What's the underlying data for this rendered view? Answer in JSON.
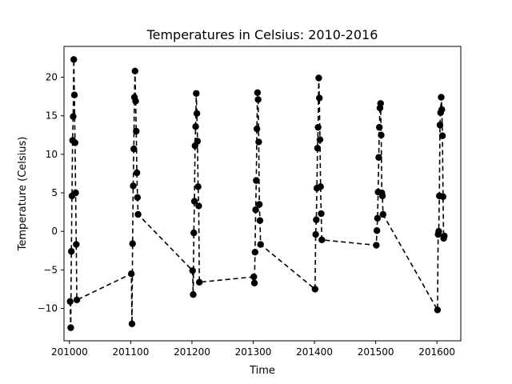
{
  "chart_data": {
    "type": "line",
    "title": "Temperatures in Celsius: 2010-2016",
    "xlabel": "Time",
    "ylabel": "Temperature (Celsius)",
    "xlim": [
      200991,
      201639
    ],
    "ylim": [
      -14.2,
      24.0
    ],
    "xticks": [
      201000,
      201100,
      201200,
      201300,
      201400,
      201500,
      201600
    ],
    "yticks": [
      -10,
      -5,
      0,
      5,
      10,
      15,
      20
    ],
    "grid": false,
    "legend": "none",
    "line_color": "#000000",
    "line_style": "dashed",
    "marker": "circle",
    "series": [
      {
        "x": [
          201001,
          201002,
          201003,
          201004,
          201005,
          201006,
          201007,
          201008,
          201009,
          201010,
          201011,
          201012,
          201101,
          201102,
          201103,
          201104,
          201105,
          201106,
          201107,
          201108,
          201109,
          201110,
          201111,
          201112,
          201201,
          201202,
          201203,
          201204,
          201205,
          201206,
          201207,
          201208,
          201209,
          201210,
          201211,
          201212,
          201301,
          201302,
          201303,
          201304,
          201305,
          201306,
          201307,
          201308,
          201309,
          201310,
          201311,
          201312,
          201401,
          201402,
          201403,
          201404,
          201405,
          201406,
          201407,
          201408,
          201409,
          201410,
          201411,
          201412,
          201501,
          201502,
          201503,
          201504,
          201505,
          201506,
          201507,
          201508,
          201509,
          201510,
          201511,
          201512,
          201601,
          201602,
          201603,
          201604,
          201605,
          201606,
          201607,
          201608,
          201609,
          201610,
          201611,
          201612
        ],
        "y": [
          -9.1,
          -12.5,
          -2.6,
          4.6,
          11.8,
          14.9,
          22.3,
          17.7,
          11.5,
          5.0,
          -1.7,
          -8.9,
          -5.5,
          -12.0,
          -1.6,
          5.9,
          10.7,
          17.4,
          20.8,
          16.9,
          13.0,
          7.6,
          4.4,
          2.2,
          -5.1,
          -8.2,
          -0.2,
          3.9,
          11.1,
          13.6,
          17.9,
          15.3,
          11.7,
          5.8,
          3.3,
          -6.6,
          -5.9,
          -6.7,
          -2.7,
          2.8,
          6.6,
          13.3,
          18.0,
          17.1,
          11.6,
          3.5,
          1.4,
          -1.7,
          -7.5,
          -0.4,
          1.5,
          5.6,
          10.8,
          13.5,
          19.9,
          17.3,
          11.9,
          5.8,
          2.3,
          -1.1,
          -1.8,
          0.1,
          1.7,
          5.1,
          9.6,
          13.5,
          16.0,
          16.6,
          12.5,
          5.0,
          4.6,
          2.2,
          -10.2,
          -0.4,
          0.0,
          4.6,
          13.8,
          15.4,
          17.4,
          15.8,
          12.4,
          4.5,
          -0.9,
          -0.6
        ]
      }
    ]
  }
}
